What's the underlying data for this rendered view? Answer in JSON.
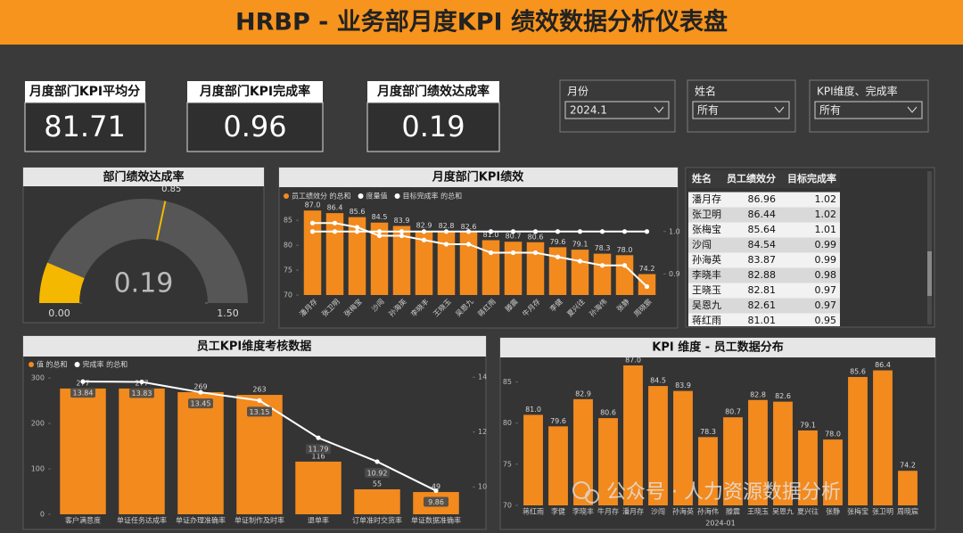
{
  "header": {
    "title": "HRBP - 业务部月度KPI 绩效数据分析仪表盘"
  },
  "kpis": [
    {
      "label": "月度部门KPI平均分",
      "value": 81.71
    },
    {
      "label": "月度部门KPI完成率",
      "value": 0.96
    },
    {
      "label": "月度部门绩效达成率",
      "value": 0.19
    }
  ],
  "slicers": [
    {
      "label": "月份",
      "value": "2024.1"
    },
    {
      "label": "姓名",
      "value": "所有"
    },
    {
      "label": "KPI维度、完成率",
      "value": "所有"
    }
  ],
  "table": {
    "columns": [
      "姓名",
      "员工绩效分",
      "目标完成率"
    ],
    "rows": [
      [
        "潘月存",
        86.96,
        1.02
      ],
      [
        "张卫明",
        86.44,
        1.02
      ],
      [
        "张梅宝",
        85.64,
        1.01
      ],
      [
        "沙闯",
        84.54,
        0.99
      ],
      [
        "孙海英",
        83.87,
        0.99
      ],
      [
        "李晓丰",
        82.88,
        0.98
      ],
      [
        "王晓玉",
        82.81,
        0.97
      ],
      [
        "吴恩九",
        82.61,
        0.97
      ],
      [
        "蒋红雨",
        81.01,
        0.95
      ]
    ]
  },
  "watermark": "公众号 · 人力资源数据分析",
  "chart_data": [
    {
      "type": "gauge",
      "title": "部门绩效达成率",
      "value": 0.19,
      "target": 0.85,
      "ylim": [
        0,
        1.5
      ],
      "yticks": [
        {
          "value": 0,
          "label": "0.00"
        },
        {
          "value": 1.5,
          "label": "1.50"
        }
      ],
      "color": "#f5b800",
      "track_color": "#565656",
      "target_color": "#f5b800"
    },
    {
      "type": "combo",
      "title": "月度部门KPI绩效",
      "categories": [
        "潘月存",
        "张卫明",
        "张梅宝",
        "沙闯",
        "孙海英",
        "李晓丰",
        "王晓玉",
        "吴恩九",
        "蒋红雨",
        "滕震",
        "牛月存",
        "李健",
        "夏兴往",
        "孙海伟",
        "张静",
        "周晓宸"
      ],
      "series": [
        {
          "name": "员工绩效分 的总和",
          "type": "bar",
          "color": "#f28a1e",
          "data_labels": true,
          "values": [
            86.96,
            86.44,
            85.64,
            84.54,
            83.87,
            82.88,
            82.81,
            82.61,
            81.01,
            80.7,
            80.6,
            79.6,
            79.1,
            78.3,
            78.0,
            74.2
          ],
          "value_labels": [
            "87.0",
            "86.4",
            "85.6",
            "84.5",
            "83.9",
            "82.9",
            "82.8",
            "82.6",
            "81.0",
            "80.7",
            "80.6",
            "79.6",
            "79.1",
            "78.3",
            "78.0",
            "74.2"
          ]
        },
        {
          "name": "度量值",
          "type": "line",
          "axis": "y2",
          "color": "#ffffff",
          "values": [
            1,
            1,
            1,
            1,
            1,
            1,
            1,
            1,
            1,
            1,
            1,
            1,
            1,
            1,
            1,
            1
          ]
        },
        {
          "name": "目标完成率 的总和",
          "type": "line",
          "axis": "y2",
          "color": "#ffffff",
          "values": [
            1.02,
            1.02,
            1.01,
            0.99,
            0.99,
            0.98,
            0.97,
            0.97,
            0.95,
            0.95,
            0.95,
            0.94,
            0.93,
            0.92,
            0.92,
            0.87
          ]
        }
      ],
      "ylim": [
        70,
        87
      ],
      "yticks": [
        70,
        75,
        80,
        85
      ],
      "y2lim": [
        0.85,
        1.05
      ],
      "y2ticks": [
        0.9,
        {
          "value": 1,
          "label": "1.0"
        }
      ]
    },
    {
      "type": "combo",
      "title": "员工KPI维度考核数据",
      "categories": [
        "客户满意度",
        "单证任务达成率",
        "单证办理准确率",
        "单证制作及时率",
        "退单率",
        "订单准时交货率",
        "单证数据准确率"
      ],
      "series": [
        {
          "name": "值 的总和",
          "type": "bar",
          "color": "#f28a1e",
          "data_labels": true,
          "values": [
            277,
            277,
            269,
            263,
            116,
            55,
            49
          ]
        },
        {
          "name": "完成率 的总和",
          "type": "line",
          "axis": "y2",
          "color": "#ffffff",
          "data_labels": true,
          "values": [
            13.84,
            13.83,
            13.45,
            13.15,
            11.79,
            10.92,
            9.86
          ]
        }
      ],
      "ylim": [
        0,
        320
      ],
      "yticks": [
        0,
        100,
        200,
        300
      ],
      "y2lim": [
        9,
        14.3
      ],
      "y2ticks": [
        10,
        12,
        14
      ]
    },
    {
      "type": "bar",
      "title": "KPI 维度 - 员工数据分布",
      "xlabel": "2024-01",
      "color": "#f28a1e",
      "data_labels": true,
      "categories": [
        "蒋红雨",
        "李健",
        "李晓丰",
        "牛月存",
        "潘月存",
        "沙闯",
        "孙海英",
        "孙海伟",
        "滕震",
        "王晓玉",
        "吴恩九",
        "夏兴往",
        "张静",
        "张梅宝",
        "张卫明",
        "周晓宸"
      ],
      "values": [
        81.0,
        79.6,
        82.9,
        80.6,
        87.0,
        84.5,
        83.9,
        78.3,
        80.7,
        82.8,
        82.6,
        79.1,
        78.0,
        85.6,
        86.4,
        74.2
      ],
      "value_labels": [
        "81.0",
        "79.6",
        "82.9",
        "80.6",
        "87.0",
        "84.5",
        "83.9",
        "78.3",
        "80.7",
        "82.8",
        "82.6",
        "79.1",
        "78.0",
        "85.6",
        "86.4",
        "74.2"
      ],
      "ylim": [
        70,
        87
      ],
      "yticks": [
        70,
        75,
        80,
        85
      ]
    }
  ]
}
